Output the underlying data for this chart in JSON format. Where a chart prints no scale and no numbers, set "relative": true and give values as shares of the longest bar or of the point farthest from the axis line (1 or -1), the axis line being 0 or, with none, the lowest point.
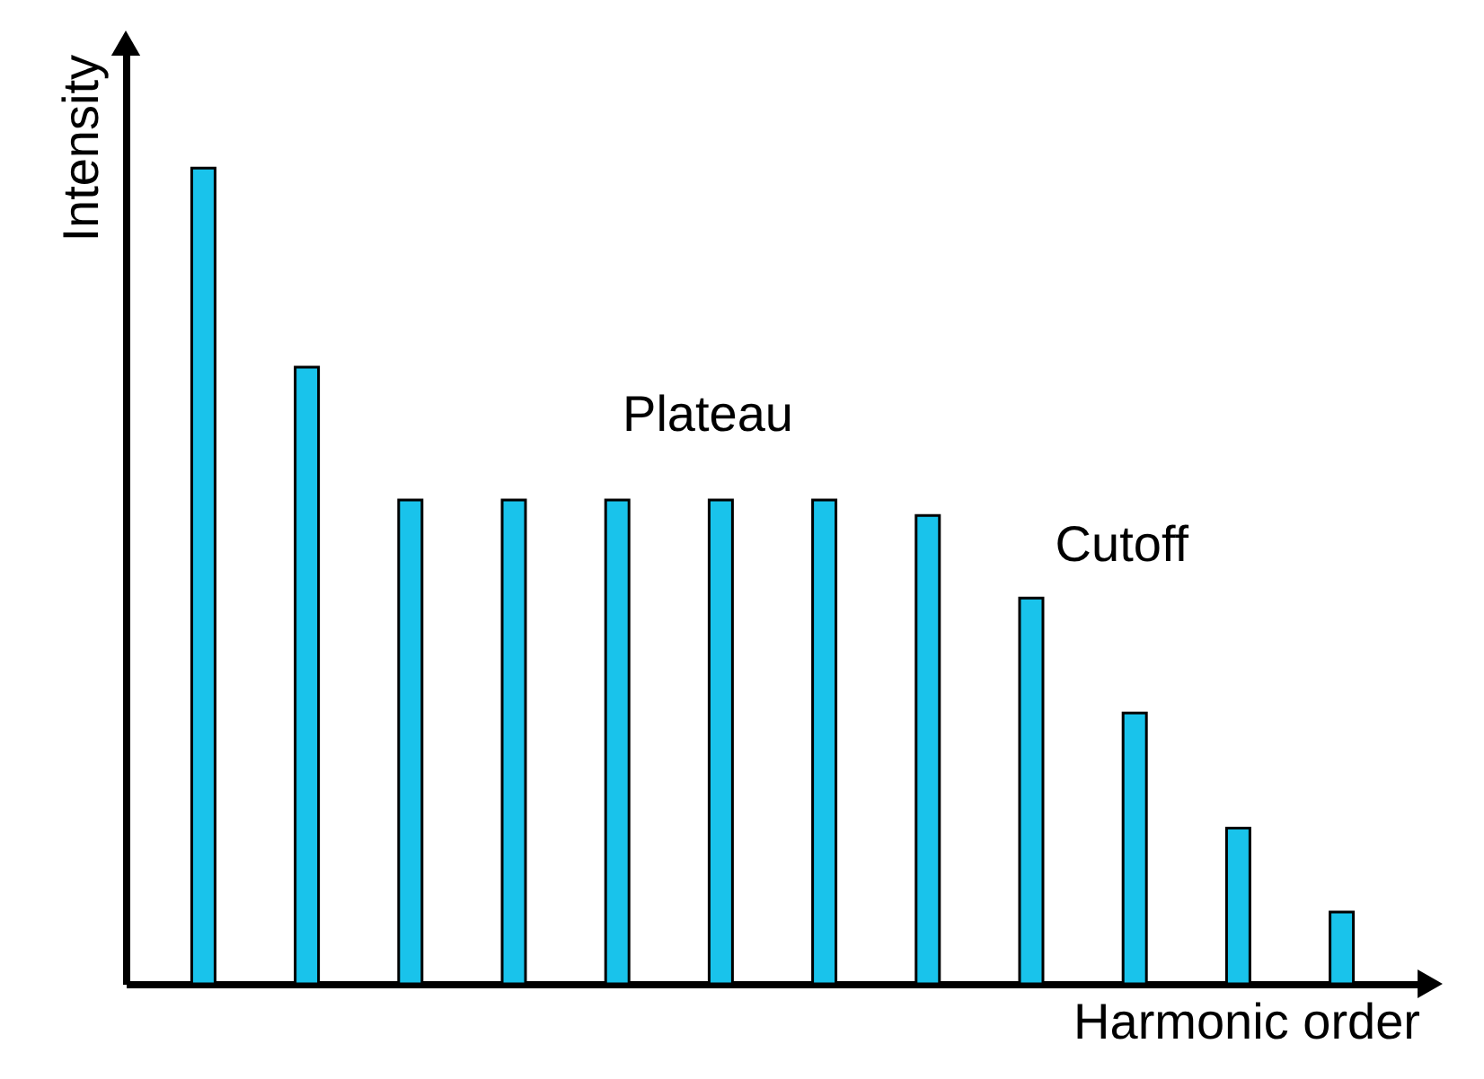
{
  "chart_data": {
    "type": "bar",
    "relative": true,
    "xlabel": "Harmonic order",
    "ylabel": "Intensity",
    "categories": [
      null,
      null,
      null,
      null,
      null,
      null,
      null,
      null,
      null,
      null,
      null,
      null
    ],
    "values": [
      1,
      0.756,
      0.593,
      0.593,
      0.593,
      0.593,
      0.593,
      0.574,
      0.473,
      0.332,
      0.191,
      0.088
    ],
    "color": "#19c3eb",
    "annotations": [
      "Plateau",
      "Cutoff"
    ]
  }
}
